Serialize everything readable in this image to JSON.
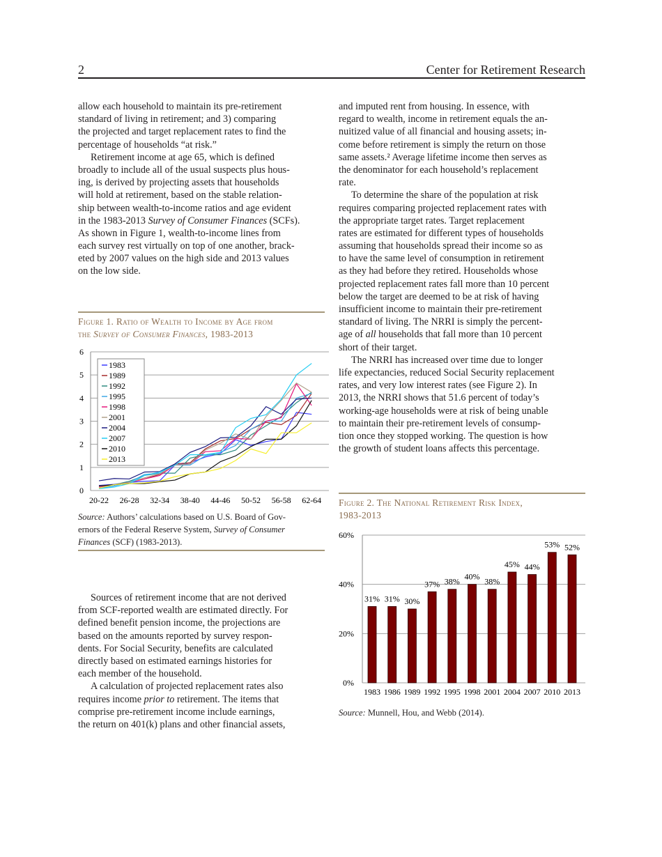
{
  "header": {
    "page_number": "2",
    "publisher": "Center for Retirement Research"
  },
  "left_top": [
    {
      "indent": false,
      "lines": [
        "allow each household to maintain its pre-retirement",
        "standard of living in retirement; and 3) comparing",
        "the projected and target replacement rates to find the",
        "percentage of households “at risk.”"
      ]
    },
    {
      "indent": true,
      "lines": [
        "Retirement income at age 65, which is defined",
        "broadly to include all of the usual suspects plus hous-",
        "ing, is derived by projecting assets that households",
        "will hold at retirement, based on the stable relation-",
        "ship between wealth-to-income ratios and age evident",
        [
          [
            "in the 1983-2013 ",
            false
          ],
          [
            "Survey of Consumer Finances",
            true
          ],
          [
            " (SCFs).",
            false
          ]
        ],
        "As shown in Figure 1, wealth-to-income lines from",
        "each survey rest virtually on top of one another, brack-",
        "eted by 2007 values on the high side and 2013 values",
        "on the low side."
      ]
    }
  ],
  "left_bottom": [
    {
      "indent": true,
      "lines": [
        "Sources of retirement income that are not derived",
        "from SCF-reported wealth are estimated directly.  For",
        "defined benefit pension income, the projections are",
        "based on the amounts reported by survey respon-",
        "dents.  For Social Security, benefits are calculated",
        "directly based on estimated earnings histories for",
        "each member of the household."
      ]
    },
    {
      "indent": true,
      "lines": [
        "A calculation of projected replacement rates also",
        [
          [
            "requires income ",
            false
          ],
          [
            "prior to",
            true
          ],
          [
            " retirement.  The items that",
            false
          ]
        ],
        "comprise pre-retirement income include earnings,",
        "the return on 401(k) plans and other financial assets,"
      ]
    }
  ],
  "right_top": [
    {
      "indent": false,
      "lines": [
        "and imputed rent from housing.  In essence, with",
        "regard to wealth, income in retirement equals the an-",
        "nuitized value of all financial and housing assets; in-",
        "come before retirement is simply the return on those",
        "same assets.²  Average lifetime income then serves as",
        "the denominator for each household’s replacement",
        "rate."
      ]
    },
    {
      "indent": true,
      "lines": [
        "To determine the share of the population at risk",
        "requires comparing projected replacement rates with",
        "the appropriate target rates.  Target replacement",
        "rates are estimated for different types of households",
        "assuming that households spread their income so as",
        "to have the same level of consumption in retirement",
        "as they had before they retired.  Households whose",
        "projected replacement rates fall more than 10 percent",
        "below the target are deemed to be at risk of having",
        "insufficient income to maintain their pre-retirement",
        "standard of living.  The NRRI is simply the percent-",
        [
          [
            "age of ",
            false
          ],
          [
            "all",
            true
          ],
          [
            " households that fall more than 10 percent",
            false
          ]
        ],
        "short of their target."
      ]
    },
    {
      "indent": true,
      "lines": [
        "The NRRI has increased over time due to longer",
        "life expectancies, reduced Social Security replacement",
        "rates, and very low interest rates (see Figure 2).  In",
        "2013, the NRRI shows that 51.6 percent of today’s",
        "working-age households were at risk of being unable",
        "to maintain their pre-retirement levels of consump-",
        "tion once they stopped working.  The question is how",
        "the growth of student loans affects this percentage."
      ]
    }
  ],
  "figure1": {
    "caption_lines": [
      [
        [
          "Figure 1. Ratio of Wealth to Income by Age from",
          false
        ]
      ],
      [
        [
          "the ",
          false
        ],
        [
          "Survey of Consumer Finances",
          true
        ],
        [
          ", 1983-2013",
          false
        ]
      ]
    ],
    "source_lines": [
      [
        [
          "Source:",
          true
        ],
        [
          " Authors’ calculations based on U.S. Board of Gov-",
          false
        ]
      ],
      [
        [
          "ernors of the Federal Reserve System, ",
          false
        ],
        [
          "Survey of Consumer",
          true
        ]
      ],
      [
        [
          "Finances",
          true
        ],
        [
          " (SCF) (1983-2013).",
          false
        ]
      ]
    ]
  },
  "figure2": {
    "caption_lines": [
      [
        [
          "Figure 2. The National Retirement Risk Index,",
          false
        ]
      ],
      [
        [
          "1983-2013",
          false
        ]
      ]
    ],
    "source_lines": [
      [
        [
          "Source:",
          true
        ],
        [
          " Munnell, Hou, and Webb (2014).",
          false
        ]
      ]
    ]
  },
  "chart_data": [
    {
      "type": "line",
      "categories": [
        "20-22",
        "23-25",
        "26-28",
        "29-31",
        "32-34",
        "35-37",
        "38-40",
        "41-43",
        "44-46",
        "47-49",
        "50-52",
        "53-55",
        "56-58",
        "59-61",
        "62-64"
      ],
      "tick_labels": [
        "20-22",
        "26-28",
        "32-34",
        "38-40",
        "44-46",
        "50-52",
        "56-58",
        "62-64"
      ],
      "ylim": [
        0,
        6
      ],
      "yticks": [
        "0",
        "1",
        "2",
        "3",
        "4",
        "5",
        "6"
      ],
      "grid": true,
      "legend_placement": "top-left",
      "series": [
        {
          "name": "1983",
          "color": "#3a3aff",
          "values": [
            0.22,
            0.27,
            0.35,
            0.4,
            0.42,
            1.1,
            1.2,
            1.45,
            1.6,
            2.2,
            1.95,
            2.12,
            2.22,
            3.38,
            3.3
          ]
        },
        {
          "name": "1989",
          "color": "#a52a2a",
          "values": [
            0.2,
            0.25,
            0.35,
            0.5,
            0.7,
            1.15,
            1.2,
            1.8,
            2.15,
            2.25,
            2.65,
            2.95,
            2.85,
            3.25,
            4.2
          ]
        },
        {
          "name": "1992",
          "color": "#2e8b80",
          "values": [
            0.15,
            0.25,
            0.4,
            0.65,
            0.75,
            0.75,
            1.4,
            1.55,
            1.55,
            1.75,
            2.4,
            2.8,
            3.2,
            3.8,
            4.25
          ]
        },
        {
          "name": "1995",
          "color": "#3fa9e6",
          "values": [
            0.1,
            0.2,
            0.35,
            0.7,
            0.75,
            1.1,
            1.1,
            1.5,
            1.65,
            1.95,
            2.65,
            3.0,
            3.0,
            4.0,
            4.2
          ]
        },
        {
          "name": "1998",
          "color": "#e6157a",
          "values": [
            0.15,
            0.25,
            0.35,
            0.5,
            0.65,
            1.1,
            1.15,
            1.68,
            1.72,
            2.25,
            2.22,
            3.0,
            3.15,
            4.62,
            3.68
          ]
        },
        {
          "name": "2001",
          "color": "#b0a08a",
          "values": [
            0.18,
            0.25,
            0.35,
            0.55,
            0.72,
            1.1,
            1.15,
            1.75,
            2.05,
            2.45,
            2.22,
            3.2,
            3.9,
            4.65,
            4.25
          ]
        },
        {
          "name": "2004",
          "color": "#1a1a80",
          "values": [
            0.42,
            0.52,
            0.5,
            0.8,
            0.82,
            1.15,
            1.65,
            1.9,
            2.28,
            2.3,
            2.8,
            3.63,
            3.3,
            3.95,
            4.0
          ]
        },
        {
          "name": "2007",
          "color": "#22ccf2",
          "values": [
            0.08,
            0.15,
            0.3,
            0.65,
            0.8,
            1.1,
            1.55,
            1.55,
            1.65,
            2.72,
            3.12,
            3.28,
            3.95,
            5.0,
            5.5
          ]
        },
        {
          "name": "2010",
          "color": "#111111",
          "values": [
            0.2,
            0.25,
            0.3,
            0.3,
            0.38,
            0.45,
            0.72,
            0.8,
            1.25,
            1.5,
            1.9,
            2.22,
            2.22,
            2.8,
            3.9
          ]
        },
        {
          "name": "2013",
          "color": "#f5ee2a",
          "values": [
            0.1,
            0.25,
            0.3,
            0.33,
            0.4,
            0.6,
            0.72,
            0.8,
            0.95,
            1.3,
            1.8,
            1.6,
            2.5,
            2.5,
            2.93
          ]
        }
      ]
    },
    {
      "type": "bar",
      "categories": [
        "1983",
        "1986",
        "1989",
        "1992",
        "1995",
        "1998",
        "2001",
        "2004",
        "2007",
        "2010",
        "2013"
      ],
      "values": [
        31,
        31,
        30,
        37,
        38,
        40,
        38,
        45,
        44,
        53,
        52
      ],
      "data_labels": [
        "31%",
        "31%",
        "30%",
        "37%",
        "38%",
        "40%",
        "38%",
        "45%",
        "44%",
        "53%",
        "52%"
      ],
      "ylim": [
        0,
        60
      ],
      "yticks": [
        "0%",
        "20%",
        "40%",
        "60%"
      ],
      "grid": true,
      "bar_color": "#7a0000"
    }
  ]
}
